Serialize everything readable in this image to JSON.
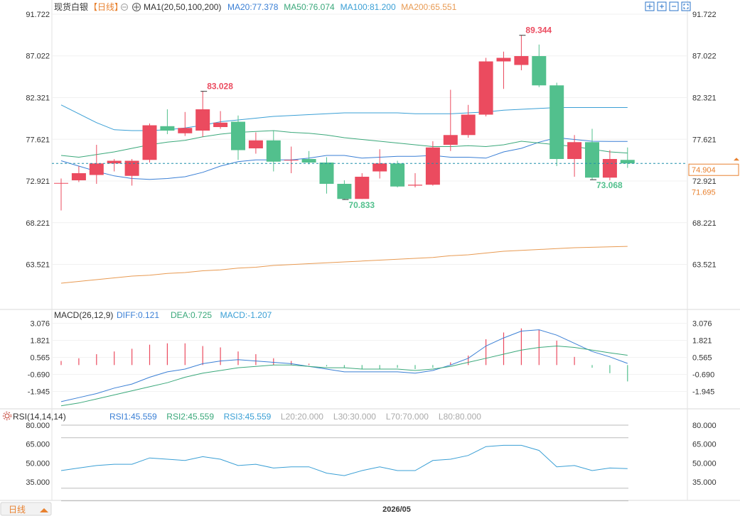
{
  "header": {
    "symbol": "现货白银",
    "period": "【日线】",
    "ma_study": "MA1(20,50,100,200)",
    "ma_items": [
      {
        "label": "MA20:77.378",
        "color": "#3a7fd5"
      },
      {
        "label": "MA50:76.074",
        "color": "#3aa87a"
      },
      {
        "label": "MA100:81.200",
        "color": "#3a9fd5"
      },
      {
        "label": "MA200:65.551",
        "color": "#e89a52"
      }
    ],
    "toolbar_icons": [
      "move-icon",
      "zoom-in-icon",
      "zoom-out-icon",
      "fullscreen-icon"
    ]
  },
  "colors": {
    "up": "#eb4b5f",
    "down": "#52c08d",
    "ma20": "#3a7fd5",
    "ma50": "#3aa87a",
    "ma100": "#3a9fd5",
    "ma200": "#e89a52",
    "last_price_line": "#1e8faa",
    "last_price_tag": "#e8812f",
    "diff": "#3a7fd5",
    "dea": "#3aa87a",
    "rsi": "#3a9fd5"
  },
  "macd": {
    "title": "MACD(26,12,9)",
    "items": [
      {
        "label": "DIFF:0.121",
        "color": "#3a7fd5"
      },
      {
        "label": "DEA:0.725",
        "color": "#3aa87a"
      },
      {
        "label": "MACD:-1.207",
        "color": "#3a9fd5"
      }
    ],
    "ticks": [
      "3.076",
      "1.821",
      "0.565",
      "-0.690",
      "-1.945"
    ]
  },
  "rsi": {
    "title": "RSI(14,14,14)",
    "items": [
      {
        "label": "RSI1:45.559",
        "color": "#3a7fd5"
      },
      {
        "label": "RSI2:45.559",
        "color": "#3aa87a"
      },
      {
        "label": "RSI3:45.559",
        "color": "#3a9fd5"
      },
      {
        "label": "L20:20.000",
        "color": "#aaaaaa"
      },
      {
        "label": "L30:30.000",
        "color": "#aaaaaa"
      },
      {
        "label": "L70:70.000",
        "color": "#aaaaaa"
      },
      {
        "label": "L80:80.000",
        "color": "#aaaaaa"
      }
    ],
    "ticks": [
      "80.000",
      "65.000",
      "50.000",
      "35.000"
    ]
  },
  "footer": {
    "period_button": "日线",
    "date_label": "2026/05"
  },
  "chart_data": {
    "type": "candlestick",
    "price_ticks": [
      "91.722",
      "87.022",
      "82.321",
      "77.621",
      "72.921",
      "68.221",
      "63.521"
    ],
    "price_tick_values": [
      91.722,
      87.022,
      82.321,
      77.621,
      72.921,
      68.221,
      63.521
    ],
    "last_price": "74.904",
    "secondary_price_label": "71.695",
    "annotations": [
      {
        "text": "83.028",
        "kind": "high",
        "index": 8,
        "value": 83.028
      },
      {
        "text": "70.833",
        "kind": "low",
        "index": 16,
        "value": 70.833
      },
      {
        "text": "89.344",
        "kind": "high",
        "index": 26,
        "value": 89.344
      },
      {
        "text": "73.068",
        "kind": "low",
        "index": 30,
        "value": 73.068
      }
    ],
    "candles": [
      {
        "o": 72.7,
        "h": 73.2,
        "l": 69.6,
        "c": 72.7
      },
      {
        "o": 73.0,
        "h": 74.6,
        "l": 72.8,
        "c": 73.8
      },
      {
        "o": 73.6,
        "h": 77.0,
        "l": 72.6,
        "c": 74.9
      },
      {
        "o": 74.9,
        "h": 75.4,
        "l": 74.0,
        "c": 75.2
      },
      {
        "o": 73.5,
        "h": 75.4,
        "l": 72.4,
        "c": 75.2
      },
      {
        "o": 75.3,
        "h": 79.4,
        "l": 75.0,
        "c": 79.2
      },
      {
        "o": 79.1,
        "h": 81.0,
        "l": 78.2,
        "c": 78.6
      },
      {
        "o": 78.3,
        "h": 80.7,
        "l": 78.0,
        "c": 78.9
      },
      {
        "o": 78.6,
        "h": 83.028,
        "l": 77.9,
        "c": 81.0
      },
      {
        "o": 79.0,
        "h": 80.8,
        "l": 78.8,
        "c": 79.5
      },
      {
        "o": 79.6,
        "h": 80.3,
        "l": 75.3,
        "c": 76.4
      },
      {
        "o": 76.6,
        "h": 78.4,
        "l": 76.0,
        "c": 77.5
      },
      {
        "o": 77.5,
        "h": 78.6,
        "l": 74.0,
        "c": 75.1
      },
      {
        "o": 75.3,
        "h": 76.8,
        "l": 73.8,
        "c": 75.3
      },
      {
        "o": 75.4,
        "h": 76.3,
        "l": 74.8,
        "c": 75.0
      },
      {
        "o": 75.0,
        "h": 75.6,
        "l": 71.5,
        "c": 72.6
      },
      {
        "o": 72.6,
        "h": 73.0,
        "l": 70.833,
        "c": 70.9
      },
      {
        "o": 70.9,
        "h": 73.8,
        "l": 70.9,
        "c": 73.4
      },
      {
        "o": 74.0,
        "h": 76.5,
        "l": 73.2,
        "c": 74.9
      },
      {
        "o": 74.9,
        "h": 75.2,
        "l": 72.2,
        "c": 72.3
      },
      {
        "o": 72.4,
        "h": 73.8,
        "l": 72.2,
        "c": 72.5
      },
      {
        "o": 72.5,
        "h": 77.4,
        "l": 72.4,
        "c": 76.7
      },
      {
        "o": 77.0,
        "h": 83.2,
        "l": 76.3,
        "c": 78.1
      },
      {
        "o": 78.1,
        "h": 81.5,
        "l": 77.8,
        "c": 80.4
      },
      {
        "o": 80.4,
        "h": 86.8,
        "l": 80.2,
        "c": 86.4
      },
      {
        "o": 86.4,
        "h": 87.5,
        "l": 83.3,
        "c": 86.8
      },
      {
        "o": 86.0,
        "h": 89.344,
        "l": 85.4,
        "c": 87.0
      },
      {
        "o": 87.0,
        "h": 88.3,
        "l": 83.5,
        "c": 83.7
      },
      {
        "o": 83.7,
        "h": 84.0,
        "l": 74.6,
        "c": 75.4
      },
      {
        "o": 75.4,
        "h": 78.1,
        "l": 73.4,
        "c": 77.3
      },
      {
        "o": 77.3,
        "h": 78.8,
        "l": 73.068,
        "c": 73.3
      },
      {
        "o": 73.3,
        "h": 76.4,
        "l": 73.0,
        "c": 75.4
      },
      {
        "o": 75.3,
        "h": 76.7,
        "l": 74.4,
        "c": 74.904
      }
    ],
    "ma20": [
      75.2,
      74.6,
      74.0,
      73.5,
      73.2,
      73.1,
      73.2,
      73.4,
      73.9,
      74.6,
      75.1,
      75.3,
      75.3,
      75.3,
      75.5,
      75.8,
      75.8,
      75.5,
      75.6,
      75.7,
      75.7,
      75.8,
      75.6,
      75.6,
      75.5,
      76.2,
      76.6,
      77.3,
      77.8,
      77.6,
      77.4,
      77.38,
      77.378
    ],
    "ma50": [
      75.8,
      75.6,
      75.9,
      76.2,
      76.6,
      77.0,
      77.3,
      77.5,
      77.9,
      78.2,
      78.4,
      78.5,
      78.6,
      78.4,
      78.3,
      78.1,
      77.8,
      77.6,
      77.4,
      77.2,
      77.0,
      76.8,
      76.8,
      76.9,
      76.8,
      77.0,
      77.4,
      77.2,
      77.0,
      76.8,
      76.5,
      76.2,
      76.074
    ],
    "ma100": [
      81.5,
      80.5,
      79.5,
      78.7,
      78.6,
      78.6,
      78.7,
      78.9,
      79.2,
      79.6,
      79.8,
      80.0,
      80.2,
      80.3,
      80.4,
      80.5,
      80.6,
      80.6,
      80.6,
      80.6,
      80.5,
      80.5,
      80.5,
      80.6,
      80.7,
      80.9,
      81.0,
      81.1,
      81.2,
      81.2,
      81.2,
      81.2,
      81.2
    ],
    "ma200": [
      61.4,
      61.6,
      61.8,
      62.0,
      62.2,
      62.3,
      62.5,
      62.6,
      62.8,
      62.9,
      63.1,
      63.2,
      63.4,
      63.5,
      63.6,
      63.7,
      63.8,
      63.9,
      64.0,
      64.1,
      64.2,
      64.3,
      64.5,
      64.6,
      64.8,
      65.0,
      65.1,
      65.2,
      65.3,
      65.4,
      65.45,
      65.5,
      65.551
    ],
    "macd_diff": [
      -2.7,
      -2.4,
      -2.1,
      -1.7,
      -1.4,
      -0.9,
      -0.5,
      -0.3,
      0.1,
      0.3,
      0.4,
      0.3,
      0.2,
      0.1,
      -0.1,
      -0.3,
      -0.5,
      -0.5,
      -0.5,
      -0.5,
      -0.6,
      -0.4,
      0.0,
      0.5,
      1.4,
      2.0,
      2.5,
      2.6,
      2.2,
      1.6,
      1.0,
      0.6,
      0.121
    ],
    "macd_dea": [
      -3.0,
      -2.8,
      -2.5,
      -2.2,
      -1.9,
      -1.6,
      -1.3,
      -0.9,
      -0.6,
      -0.4,
      -0.2,
      -0.1,
      0.0,
      0.0,
      -0.1,
      -0.2,
      -0.2,
      -0.3,
      -0.3,
      -0.3,
      -0.4,
      -0.3,
      -0.1,
      0.2,
      0.5,
      0.8,
      1.1,
      1.3,
      1.4,
      1.3,
      1.1,
      0.9,
      0.725
    ],
    "macd_hist": [
      0.3,
      0.5,
      0.8,
      1.0,
      1.2,
      1.5,
      1.6,
      1.6,
      1.4,
      1.3,
      1.0,
      0.8,
      0.5,
      0.3,
      0.1,
      -0.1,
      -0.2,
      -0.3,
      -0.3,
      -0.2,
      -0.3,
      -0.2,
      0.2,
      0.7,
      1.9,
      2.4,
      2.7,
      2.6,
      1.8,
      0.6,
      -0.2,
      -0.6,
      -1.207
    ],
    "rsi": [
      44,
      46,
      48,
      49,
      49,
      54,
      53,
      52,
      55,
      53,
      48,
      49,
      46,
      47,
      47,
      42,
      40,
      44,
      47,
      44,
      44,
      52,
      53,
      56,
      63,
      64,
      64,
      60,
      47,
      48,
      44,
      46,
      45.559
    ]
  }
}
